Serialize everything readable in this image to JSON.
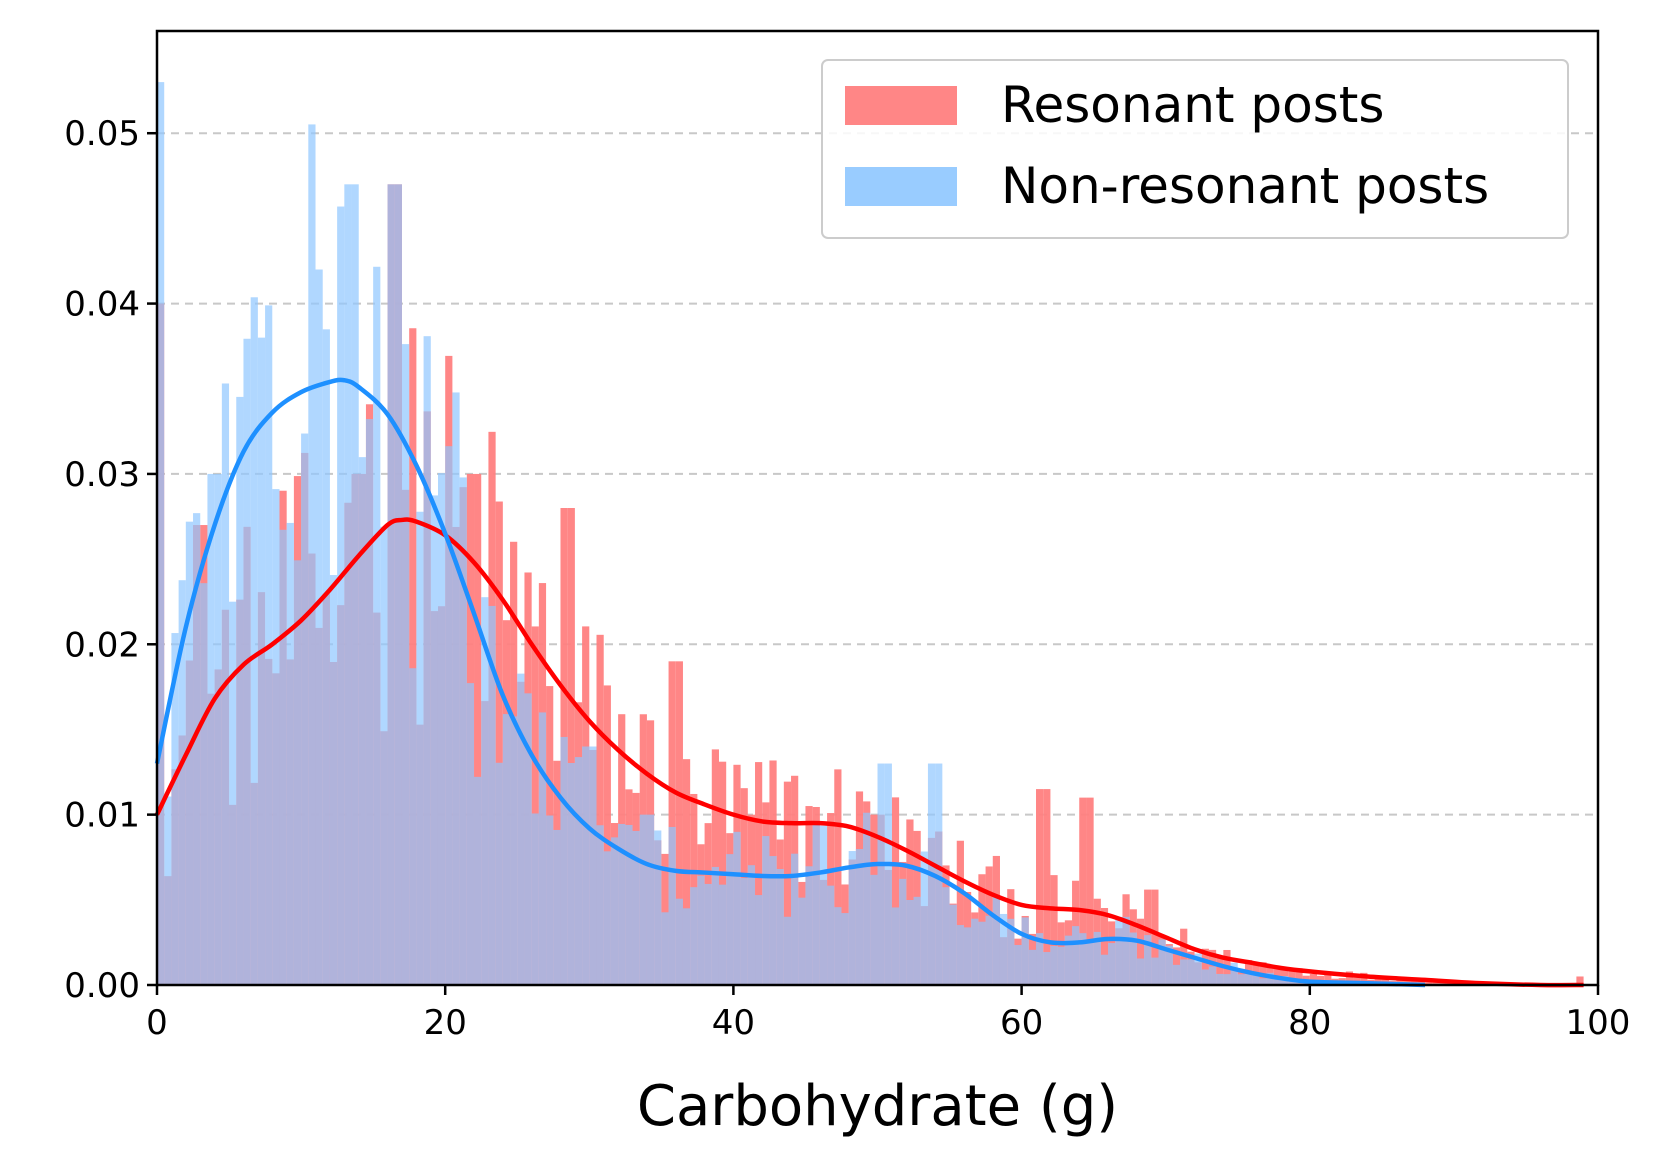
{
  "chart_data": {
    "type": "histogram",
    "xlabel": "Carbohydrate  (g)",
    "ylabel": "",
    "xlim": [
      0,
      100
    ],
    "ylim": [
      0,
      0.056
    ],
    "xticks": [
      "0",
      "20",
      "40",
      "60",
      "80",
      "100"
    ],
    "yticks": [
      "0.00",
      "0.01",
      "0.02",
      "0.03",
      "0.04",
      "0.05"
    ],
    "grid": "y-dashed",
    "legend_position": "top-right",
    "bin_width": 0.5,
    "series": [
      {
        "name": "Resonant posts",
        "color": "#ff7f7f",
        "line_color": "#ff0000",
        "density_peaks": [
          [
            0,
            0.04
          ],
          [
            3,
            0.027
          ],
          [
            14,
            0.03
          ],
          [
            16.5,
            0.047
          ],
          [
            22,
            0.03
          ],
          [
            28.5,
            0.028
          ],
          [
            36,
            0.019
          ],
          [
            50,
            0.01
          ],
          [
            61.5,
            0.0115
          ],
          [
            64.5,
            0.011
          ],
          [
            69,
            0.0056
          ],
          [
            99,
            0.0005
          ]
        ],
        "kde": [
          [
            0,
            0.01
          ],
          [
            2,
            0.0135
          ],
          [
            4,
            0.0168
          ],
          [
            6,
            0.0188
          ],
          [
            8,
            0.02
          ],
          [
            10,
            0.0214
          ],
          [
            12,
            0.0232
          ],
          [
            14,
            0.0252
          ],
          [
            16,
            0.027
          ],
          [
            17,
            0.0273
          ],
          [
            18,
            0.0272
          ],
          [
            20,
            0.0264
          ],
          [
            22,
            0.0248
          ],
          [
            24,
            0.0226
          ],
          [
            26,
            0.02
          ],
          [
            28,
            0.0176
          ],
          [
            30,
            0.0155
          ],
          [
            32,
            0.0138
          ],
          [
            34,
            0.0124
          ],
          [
            36,
            0.0113
          ],
          [
            38,
            0.0106
          ],
          [
            40,
            0.01
          ],
          [
            42,
            0.0096
          ],
          [
            44,
            0.0095
          ],
          [
            46,
            0.0095
          ],
          [
            48,
            0.0093
          ],
          [
            50,
            0.0087
          ],
          [
            52,
            0.0079
          ],
          [
            54,
            0.007
          ],
          [
            56,
            0.0061
          ],
          [
            58,
            0.0053
          ],
          [
            60,
            0.0047
          ],
          [
            62,
            0.0045
          ],
          [
            64,
            0.0044
          ],
          [
            66,
            0.0041
          ],
          [
            68,
            0.0035
          ],
          [
            70,
            0.0028
          ],
          [
            72,
            0.0021
          ],
          [
            74,
            0.0016
          ],
          [
            76,
            0.0013
          ],
          [
            78,
            0.001
          ],
          [
            80,
            0.0008
          ],
          [
            84,
            0.0005
          ],
          [
            88,
            0.0003
          ],
          [
            92,
            0.0001
          ],
          [
            96,
            0.0
          ],
          [
            99,
            0.0
          ]
        ]
      },
      {
        "name": "Non-resonant posts",
        "color": "#8ec6ff",
        "line_color": "#1e90ff",
        "density_peaks": [
          [
            0,
            0.053
          ],
          [
            4,
            0.03
          ],
          [
            7,
            0.038
          ],
          [
            11,
            0.042
          ],
          [
            13.5,
            0.047
          ],
          [
            16.5,
            0.047
          ],
          [
            20,
            0.025
          ],
          [
            30,
            0.014
          ],
          [
            34,
            0.01
          ],
          [
            50.5,
            0.013
          ],
          [
            54,
            0.013
          ],
          [
            67,
            0.004
          ],
          [
            71.5,
            0.0015
          ]
        ],
        "kde": [
          [
            0,
            0.013
          ],
          [
            2,
            0.021
          ],
          [
            4,
            0.027
          ],
          [
            6,
            0.0313
          ],
          [
            8,
            0.0336
          ],
          [
            10,
            0.0348
          ],
          [
            12,
            0.0354
          ],
          [
            13,
            0.0355
          ],
          [
            14,
            0.0351
          ],
          [
            16,
            0.0335
          ],
          [
            18,
            0.0305
          ],
          [
            20,
            0.0265
          ],
          [
            22,
            0.0218
          ],
          [
            24,
            0.017
          ],
          [
            26,
            0.0135
          ],
          [
            28,
            0.011
          ],
          [
            30,
            0.0092
          ],
          [
            32,
            0.008
          ],
          [
            34,
            0.0071
          ],
          [
            36,
            0.0067
          ],
          [
            38,
            0.0066
          ],
          [
            40,
            0.0065
          ],
          [
            42,
            0.0064
          ],
          [
            44,
            0.0064
          ],
          [
            46,
            0.0066
          ],
          [
            48,
            0.0069
          ],
          [
            50,
            0.0071
          ],
          [
            52,
            0.007
          ],
          [
            54,
            0.0064
          ],
          [
            56,
            0.0054
          ],
          [
            58,
            0.0041
          ],
          [
            60,
            0.003
          ],
          [
            62,
            0.0025
          ],
          [
            64,
            0.0025
          ],
          [
            66,
            0.0027
          ],
          [
            68,
            0.0026
          ],
          [
            70,
            0.0021
          ],
          [
            72,
            0.0016
          ],
          [
            74,
            0.0011
          ],
          [
            76,
            0.0007
          ],
          [
            78,
            0.0004
          ],
          [
            80,
            0.0002
          ],
          [
            84,
            0.0001
          ],
          [
            88,
            0.0
          ]
        ]
      }
    ]
  }
}
